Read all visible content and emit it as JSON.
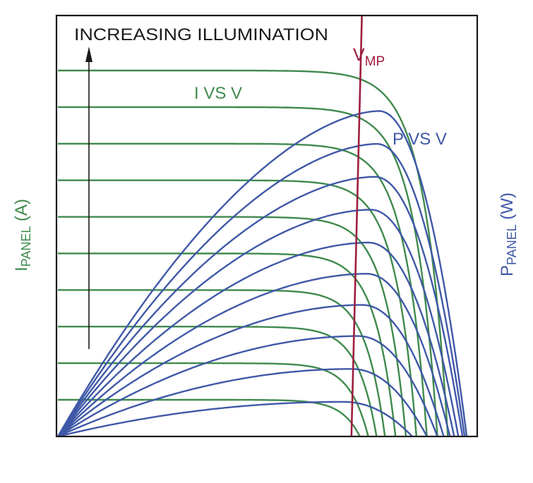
{
  "chart_data": {
    "type": "line",
    "title": "",
    "y_label_left": {
      "main": "I",
      "subscript": "PANEL",
      "unit": " (A)"
    },
    "y_label_right": {
      "main": "P",
      "subscript": "PANEL",
      "unit": " (W)"
    },
    "annotations": {
      "arrow": "INCREASING ILLUMINATION",
      "iv": "I VS V",
      "pv": "P VS V",
      "vmp": {
        "main": "V",
        "subscript": "MP"
      }
    },
    "axes": {
      "x_ticks": [],
      "y_ticks": [],
      "grid": false
    },
    "iv_levels": [
      1.0,
      0.9,
      0.8,
      0.7,
      0.6,
      0.5,
      0.4,
      0.3,
      0.2,
      0.1
    ],
    "iv_voc": [
      0.93,
      0.905,
      0.88,
      0.855,
      0.83,
      0.805,
      0.78,
      0.76,
      0.74,
      0.72
    ],
    "pv_peaks": [
      {
        "v": 0.765,
        "p": 0.94
      },
      {
        "v": 0.76,
        "p": 0.845
      },
      {
        "v": 0.755,
        "p": 0.75
      },
      {
        "v": 0.745,
        "p": 0.655
      },
      {
        "v": 0.74,
        "p": 0.56
      },
      {
        "v": 0.735,
        "p": 0.47
      },
      {
        "v": 0.725,
        "p": 0.38
      },
      {
        "v": 0.715,
        "p": 0.29
      },
      {
        "v": 0.7,
        "p": 0.195
      },
      {
        "v": 0.68,
        "p": 0.1
      }
    ],
    "pv_voc": [
      0.975,
      0.97,
      0.965,
      0.955,
      0.945,
      0.935,
      0.92,
      0.905,
      0.88,
      0.845
    ],
    "vmp_line": {
      "v_bottom": 0.7,
      "v_top": 0.725
    },
    "colors": {
      "iv": "#3f8a4d",
      "pv": "#3f58a7",
      "vmp": "#9c1e3f",
      "frame": "#1a1a1a",
      "arrow": "#1a1a1a"
    }
  }
}
